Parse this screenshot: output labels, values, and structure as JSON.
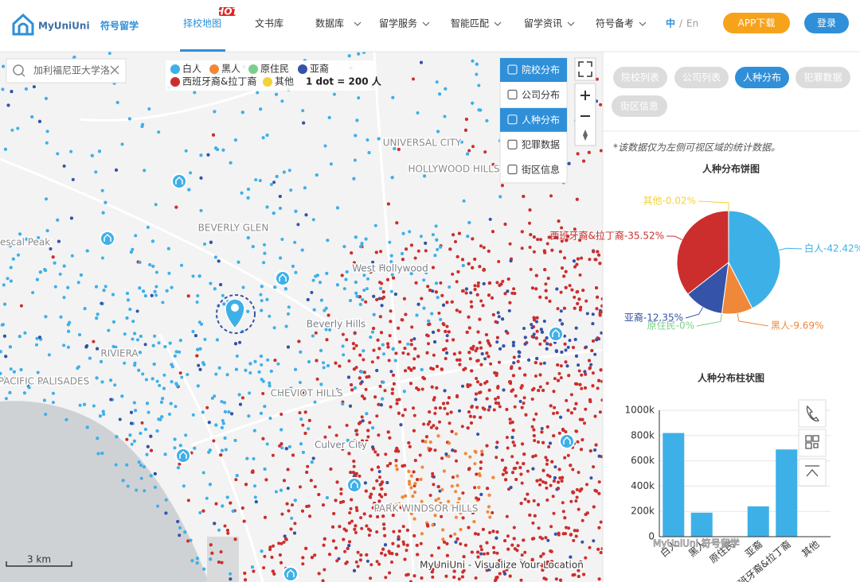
{
  "header": {
    "logo": "MyUniUni",
    "logo_cn": "符号留学",
    "nav": [
      {
        "label": "择校地图",
        "badge": "HOT",
        "active": true,
        "dropdown": false
      },
      {
        "label": "文书库",
        "dropdown": false
      },
      {
        "label": "数据库",
        "dropdown": true
      },
      {
        "label": "留学服务",
        "dropdown": true
      },
      {
        "label": "智能匹配",
        "dropdown": true
      },
      {
        "label": "留学资讯",
        "dropdown": true
      },
      {
        "label": "符号备考",
        "dropdown": true
      }
    ],
    "lang_current": "中",
    "lang_sep": "/",
    "lang_other": "En",
    "app_button": "APP下载",
    "login_button": "登录"
  },
  "map": {
    "search_placeholder": "加利福尼亚大学洛",
    "legend": [
      {
        "name": "白人",
        "color": "#3eb0e8"
      },
      {
        "name": "黑人",
        "color": "#f0883a"
      },
      {
        "name": "原住民",
        "color": "#7ccf8a"
      },
      {
        "name": "亚裔",
        "color": "#3553a8"
      },
      {
        "name": "西班牙裔&拉丁裔",
        "color": "#cc2e2e"
      },
      {
        "name": "其他",
        "color": "#f4d13a"
      }
    ],
    "legend_note": "1 dot = 200 人",
    "layers": [
      {
        "label": "院校分布",
        "active": true
      },
      {
        "label": "公司分布",
        "active": false
      },
      {
        "label": "人种分布",
        "active": true
      },
      {
        "label": "犯罪数据",
        "active": false
      },
      {
        "label": "街区信息",
        "active": false
      }
    ],
    "place_labels": [
      "Beverly Hills",
      "West Hollywood",
      "Culver City",
      "escal Peak",
      "BEVERLY GLEN",
      "UNIVERSAL CITY",
      "HOLLYWOOD HILLS",
      "RIVIERA",
      "PACIFIC PALISADES",
      "CHEVIOT HILLS",
      "PARK WINDSOR HILLS"
    ],
    "scale": "3 km",
    "attribution": "MyUniUni - Visualize Your Location"
  },
  "panel": {
    "tabs": [
      {
        "label": "院校列表",
        "active": false
      },
      {
        "label": "公司列表",
        "active": false
      },
      {
        "label": "人种分布",
        "active": true
      },
      {
        "label": "犯罪数据",
        "active": false
      },
      {
        "label": "街区信息",
        "active": false
      }
    ],
    "note": "*该数据仅为左侧可视区域的统计数据。",
    "pie_chart": {
      "type": "pie",
      "title": "人种分布饼图",
      "categories": [
        "白人",
        "黑人",
        "原住民",
        "亚裔",
        "西班牙裔&拉丁裔",
        "其他"
      ],
      "values": [
        42.42,
        9.69,
        0,
        12.35,
        35.52,
        0.02
      ],
      "value_labels": [
        "白人-42.42%",
        "黑人-9.69%",
        "原住民-0%",
        "亚裔-12.35%",
        "西班牙裔&拉丁裔-35.52%",
        "其他-0.02%"
      ],
      "colors": [
        "#3eb0e8",
        "#f0883a",
        "#7ccf8a",
        "#3553a8",
        "#cc2e2e",
        "#f4d13a"
      ]
    },
    "bar_chart": {
      "type": "bar",
      "title": "人种分布柱状图",
      "categories": [
        "白人",
        "黑人",
        "原住民",
        "亚裔",
        "西班牙裔&拉丁裔",
        "其他"
      ],
      "values": [
        820000,
        190000,
        0,
        240000,
        690000,
        0
      ],
      "color": "#3eb0e8",
      "ylim": [
        0,
        1000000
      ],
      "yticks": [
        0,
        {
          "value": 200000,
          "label": "200k"
        },
        {
          "value": 400000,
          "label": "400k"
        },
        {
          "value": 600000,
          "label": "600k"
        },
        {
          "value": 800000,
          "label": "800k"
        },
        {
          "value": 1000000,
          "label": "1000k"
        }
      ],
      "grid": true
    }
  },
  "watermark": "MyUniUni 符号留学"
}
